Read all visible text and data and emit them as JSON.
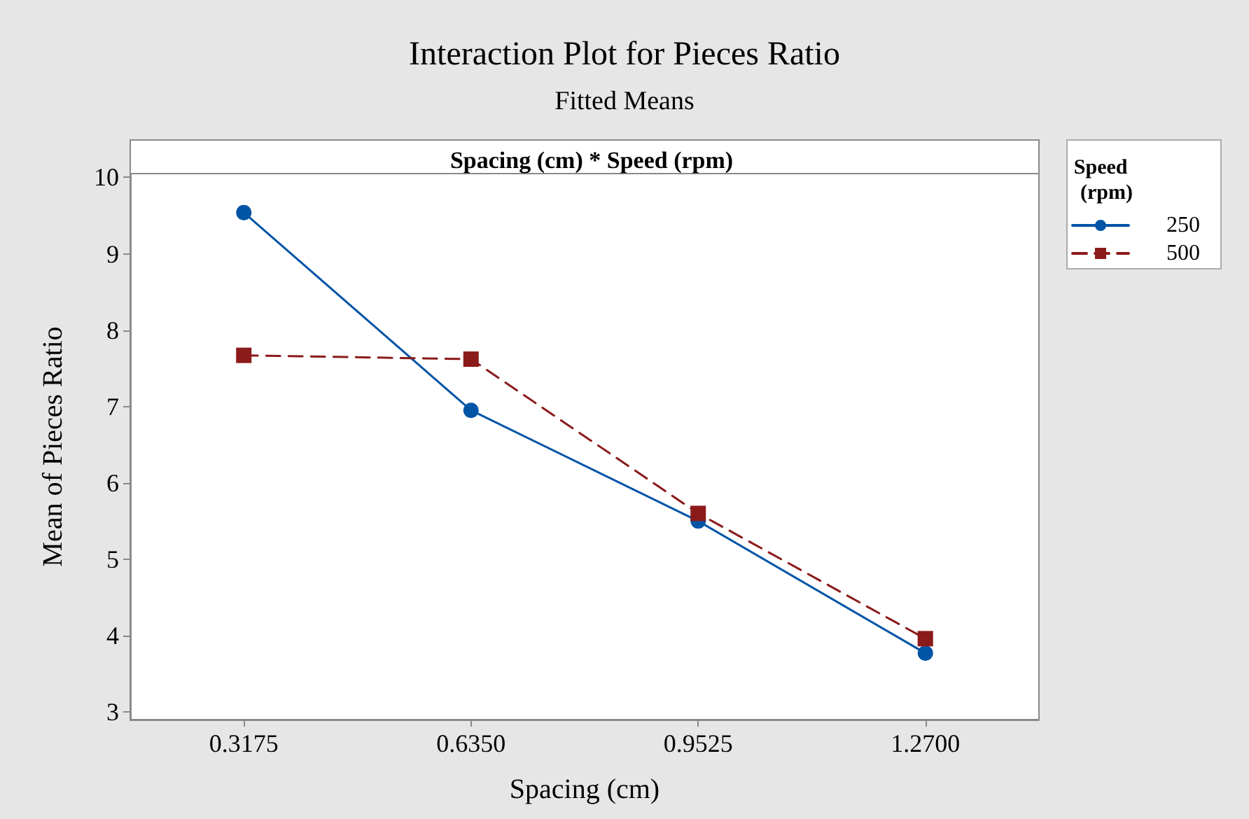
{
  "chart_data": {
    "type": "line",
    "title": "Interaction Plot for Pieces Ratio",
    "subtitle": "Fitted Means",
    "xlabel": "Spacing (cm)",
    "ylabel": "Mean of Pieces Ratio",
    "legend_title": "Speed (rpm)",
    "annotations": [
      "Spacing (cm) * Speed (rpm)"
    ],
    "categories": [
      "0.3175",
      "0.6350",
      "0.9525",
      "1.2700"
    ],
    "series": [
      {
        "name": "250",
        "color": "#0054a6",
        "values": [
          9.54,
          6.95,
          5.5,
          3.77
        ],
        "marker": "circle",
        "line_style": "solid"
      },
      {
        "name": "500",
        "color": "#8b1a1a",
        "values": [
          7.67,
          7.62,
          5.6,
          3.96
        ],
        "marker": "square",
        "line_style": "dashed"
      }
    ],
    "ylim": [
      2.9,
      10.05
    ],
    "yticks": [
      3,
      4,
      5,
      6,
      7,
      8,
      9,
      10
    ],
    "grid": false,
    "legend": "right"
  }
}
